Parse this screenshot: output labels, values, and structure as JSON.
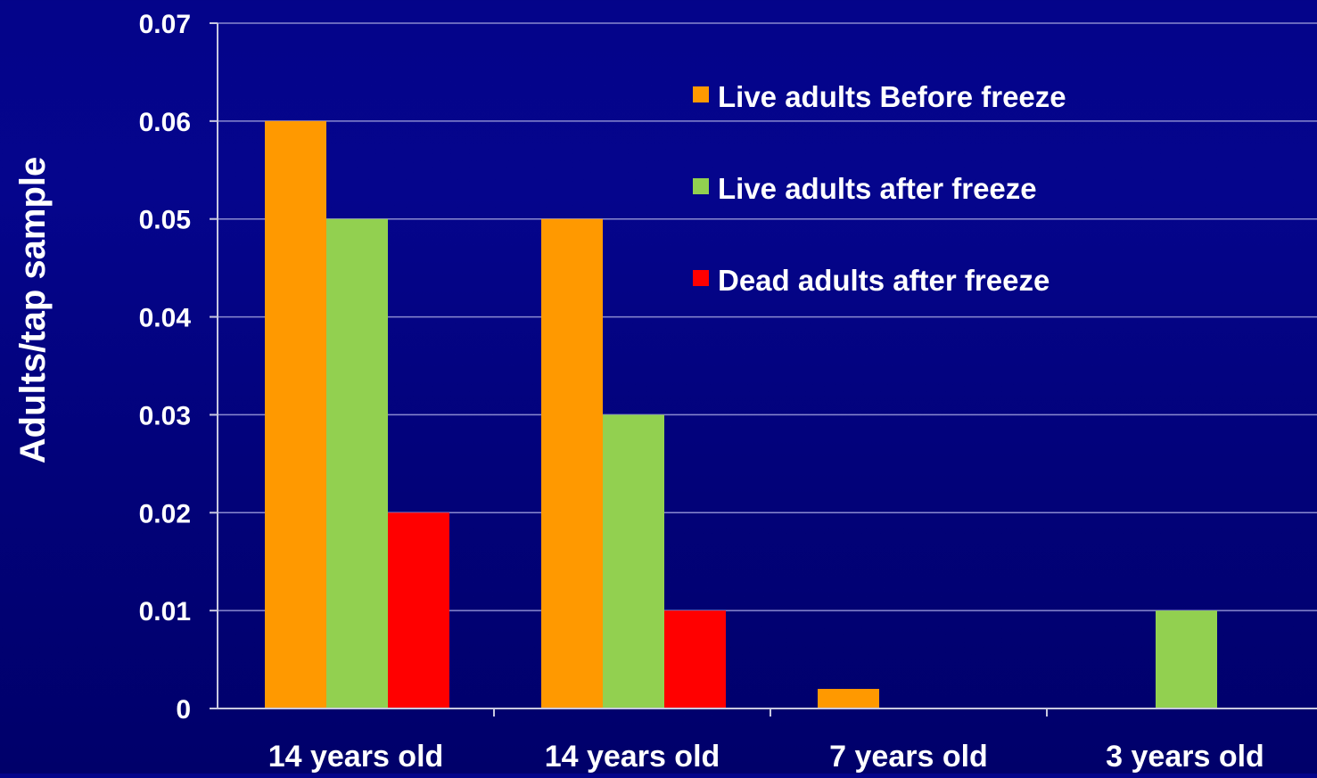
{
  "chart_data": {
    "type": "bar",
    "title": "",
    "xlabel": "",
    "ylabel": "Adults/tap sample",
    "ylim": [
      0,
      0.07
    ],
    "yticks": [
      "0",
      "0.01",
      "0.02",
      "0.03",
      "0.04",
      "0.05",
      "0.06",
      "0.07"
    ],
    "ytick_values": [
      0,
      0.01,
      0.02,
      0.03,
      0.04,
      0.05,
      0.06,
      0.07
    ],
    "grid": true,
    "legend_position": "top-right",
    "categories": [
      "14 years old",
      "14 years old",
      "7 years old",
      "3 years old"
    ],
    "series": [
      {
        "name": "Live adults Before freeze",
        "color": "#ff9900",
        "values": [
          0.06,
          0.05,
          0.002,
          0
        ]
      },
      {
        "name": "Live adults after freeze",
        "color": "#92d050",
        "values": [
          0.05,
          0.03,
          0,
          0.01
        ]
      },
      {
        "name": "Dead adults after freeze",
        "color": "#ff0000",
        "values": [
          0.02,
          0.01,
          0,
          0
        ]
      }
    ]
  },
  "colors": {
    "background": "#03037e",
    "axis": "#c8c8e0",
    "gridline": "#8a8ad0",
    "text": "#ffffff"
  }
}
